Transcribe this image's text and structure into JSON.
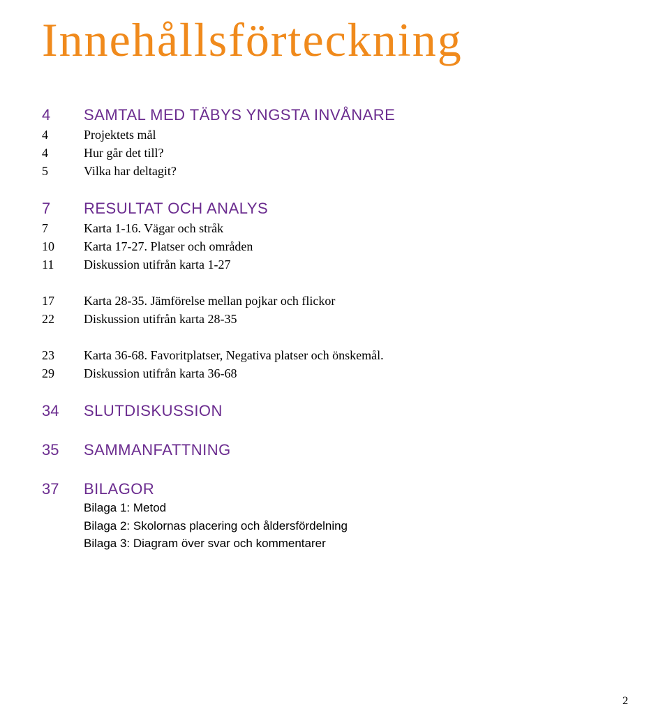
{
  "header": {
    "title_text": "Innehållsförteckning",
    "title_color": "#f08a1c",
    "title_fontsize": 60
  },
  "colors": {
    "heading": "#6b2c8f",
    "body": "#000000",
    "background": "#ffffff"
  },
  "typography": {
    "heading_fontsize": 22,
    "body_fontsize": 18,
    "sub_fontsize": 17,
    "heading_family": "Verdana, sans-serif",
    "body_family": "Georgia, serif"
  },
  "toc": [
    {
      "num": "4",
      "text": "SAMTAL MED TÄBYS YNGSTA INVÅNARE",
      "type": "section",
      "items": [
        {
          "num": "4",
          "text": "Projektets mål"
        },
        {
          "num": "4",
          "text": "Hur går det till?"
        },
        {
          "num": "5",
          "text": "Vilka har deltagit?"
        }
      ]
    },
    {
      "num": "7",
      "text": "RESULTAT OCH ANALYS",
      "type": "section",
      "items": [
        {
          "num": "7",
          "text": "Karta 1-16. Vägar och stråk"
        },
        {
          "num": "10",
          "text": "Karta 17-27. Platser och områden"
        },
        {
          "num": "11",
          "text": "Diskussion utifrån karta 1-27"
        }
      ]
    },
    {
      "type": "block",
      "items": [
        {
          "num": "17",
          "text": "Karta 28-35. Jämförelse mellan pojkar och flickor"
        },
        {
          "num": "22",
          "text": "Diskussion utifrån karta 28-35"
        }
      ]
    },
    {
      "type": "block",
      "items": [
        {
          "num": "23",
          "text": "Karta 36-68. Favoritplatser, Negativa platser och önskemål."
        },
        {
          "num": "29",
          "text": "Diskussion utifrån karta 36-68"
        }
      ]
    },
    {
      "num": "34",
      "text": "SLUTDISKUSSION",
      "type": "section",
      "items": []
    },
    {
      "num": "35",
      "text": "SAMMANFATTNING",
      "type": "section",
      "items": []
    },
    {
      "num": "37",
      "text": "BILAGOR",
      "type": "section",
      "subs": [
        "Bilaga 1: Metod",
        "Bilaga 2: Skolornas placering och åldersfördelning",
        "Bilaga 3: Diagram över svar och kommentarer"
      ]
    }
  ],
  "page_number": "2"
}
